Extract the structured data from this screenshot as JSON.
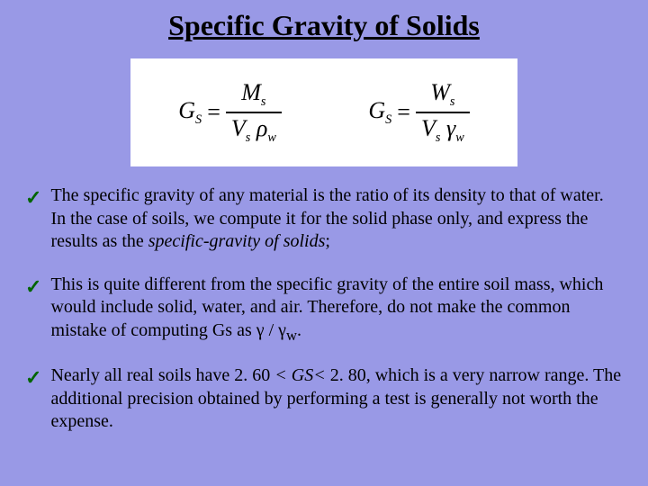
{
  "title": "Specific Gravity of Solids",
  "formulas": {
    "panel_bg": "#ffffff",
    "text_color": "#000000",
    "f1": {
      "lhs_main": "G",
      "lhs_sub": "S",
      "num_main": "M",
      "num_sub": "s",
      "den_a_main": "V",
      "den_a_sub": "s",
      "den_b_main": "ρ",
      "den_b_sub": "w"
    },
    "f2": {
      "lhs_main": "G",
      "lhs_sub": "S",
      "num_main": "W",
      "num_sub": "s",
      "den_a_main": "V",
      "den_a_sub": "s",
      "den_b_main": "γ",
      "den_b_sub": "w"
    }
  },
  "bullets": {
    "b1_pre": "The specific gravity of any material is the ratio of its density to that of water. In the case of soils, we compute it for the solid phase only, and express the results as the ",
    "b1_em": "specific-gravity of solids",
    "b1_post": ";",
    "b2": "This is quite different from the specific gravity of the entire soil mass, which would include solid, water, and air. Therefore, do not make the common mistake of computing Gs as γ / γ",
    "b2_sub": "w",
    "b2_post": ".",
    "b3_pre": "Nearly all real soils have 2. 60 ",
    "b3_lt1": "<",
    "b3_mid": " GS",
    "b3_lt2": "<",
    "b3_post": " 2. 80, which is a very narrow range. The additional precision obtained by performing a test is generally not worth the expense."
  },
  "styling": {
    "background_color": "#9999e6",
    "title_fontsize": 32,
    "body_fontsize": 20,
    "check_color": "#006400",
    "font_family": "Times New Roman"
  }
}
